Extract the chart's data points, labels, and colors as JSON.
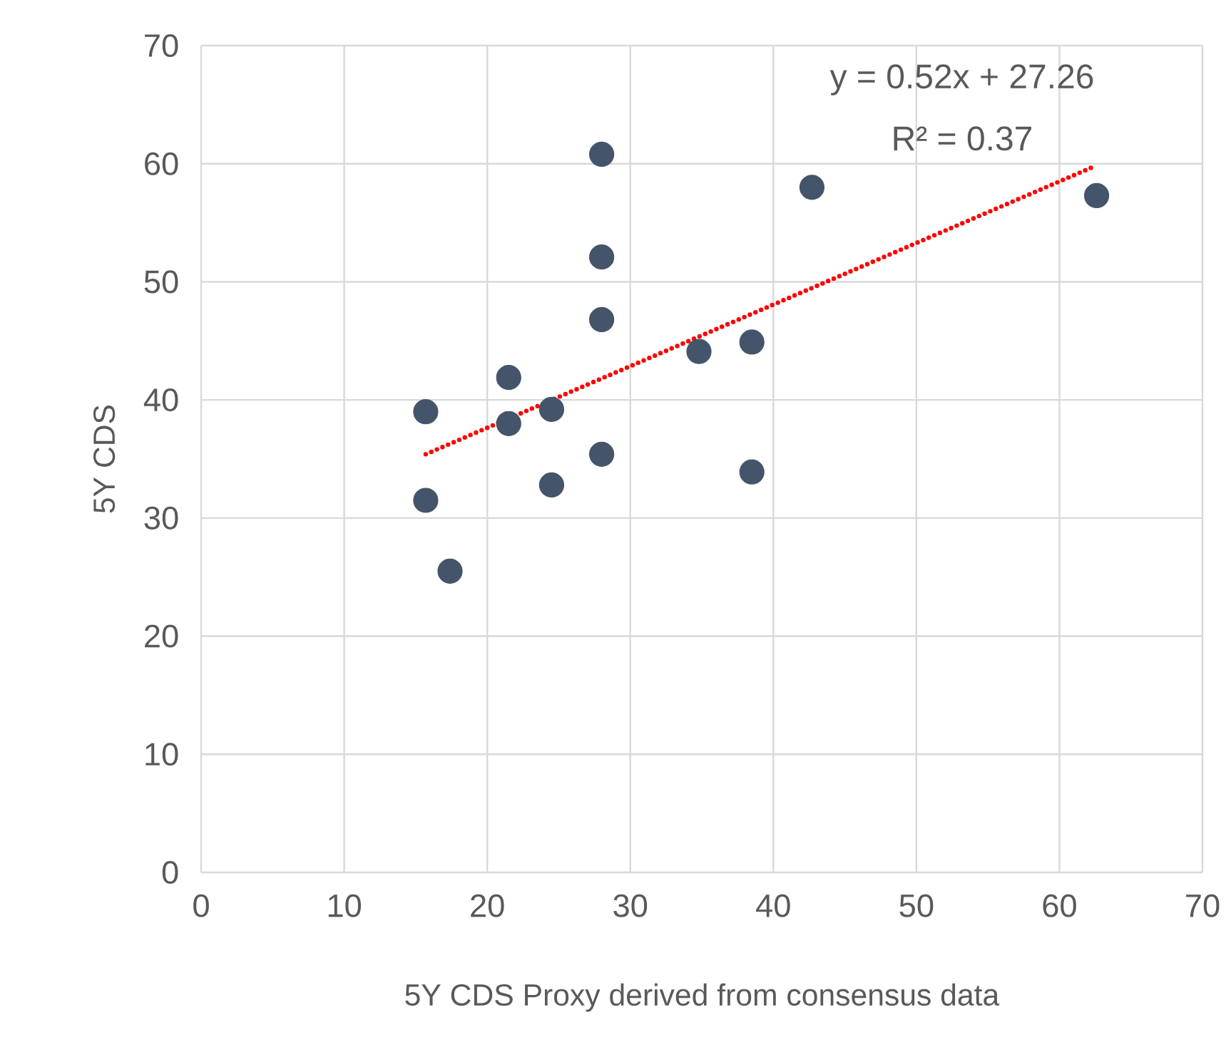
{
  "chart_data": {
    "type": "scatter",
    "xlabel": "5Y CDS Proxy derived from consensus data",
    "ylabel": "5Y CDS",
    "xlim": [
      0,
      70
    ],
    "ylim": [
      0,
      70
    ],
    "xticks": [
      0,
      10,
      20,
      30,
      40,
      50,
      60,
      70
    ],
    "yticks": [
      0,
      10,
      20,
      30,
      40,
      50,
      60,
      70
    ],
    "grid": true,
    "annotations": [
      "y = 0.52x + 27.26",
      "R² = 0.37"
    ],
    "series": [
      {
        "marker": "circle",
        "color": "#44546a",
        "x": [
          15.7,
          15.7,
          17.4,
          21.5,
          21.5,
          24.5,
          24.5,
          28.0,
          28.0,
          28.0,
          28.0,
          34.8,
          38.5,
          38.5,
          42.7,
          62.6
        ],
        "values": [
          39.0,
          31.5,
          25.5,
          41.9,
          38.0,
          39.2,
          32.8,
          60.8,
          52.1,
          46.8,
          35.4,
          44.1,
          44.9,
          33.9,
          58.0,
          57.3
        ]
      },
      {
        "type": "line",
        "color": "#ff0000",
        "line_style": "dotted",
        "marker": "none",
        "x": [
          15.7,
          62.3
        ],
        "values": [
          35.4,
          59.7
        ]
      }
    ]
  }
}
